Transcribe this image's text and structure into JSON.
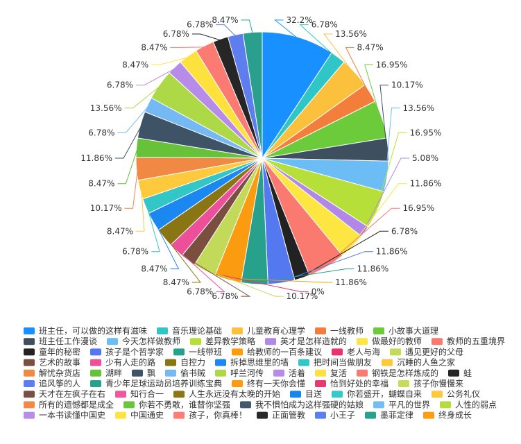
{
  "chart_data": {
    "type": "pie",
    "legend_position": "bottom",
    "slices": [
      {
        "name": "班主任，可以做的这样有滋味",
        "value": 32.2,
        "label": "32.2%",
        "color": "#1890ff"
      },
      {
        "name": "音乐理论基础",
        "value": 6.78,
        "label": "6.78%",
        "color": "#2fc6c8"
      },
      {
        "name": "儿童教育心理学",
        "value": 13.56,
        "label": "13.56%",
        "color": "#fcc13c"
      },
      {
        "name": "一线教师",
        "value": 8.47,
        "label": "8.47%",
        "color": "#f37d3b"
      },
      {
        "name": "小故事大道理",
        "value": 16.95,
        "label": "16.95%",
        "color": "#6bcb3a"
      },
      {
        "name": "班主任工作漫谈",
        "value": 10.17,
        "label": "10.17%",
        "color": "#3e5060"
      },
      {
        "name": "今天怎样做教师",
        "value": 13.56,
        "label": "13.56%",
        "color": "#6cbcf5"
      },
      {
        "name": "差异教学策略",
        "value": 16.95,
        "label": "16.95%",
        "color": "#b6e039"
      },
      {
        "name": "英才是怎样造就的",
        "value": 5.08,
        "label": "5.08%",
        "color": "#b188e7"
      },
      {
        "name": "做最好的教师",
        "value": 11.86,
        "label": "11.86%",
        "color": "#fde542"
      },
      {
        "name": "教师的五重境界",
        "value": 16.95,
        "label": "16.95%",
        "color": "#fa7a70"
      },
      {
        "name": "童年的秘密",
        "value": 6.78,
        "label": "6.78%",
        "color": "#222222"
      },
      {
        "name": "孩子是个哲学家",
        "value": 11.86,
        "label": "11.86%",
        "color": "#5478f0"
      },
      {
        "name": "一线带班",
        "value": 11.86,
        "label": "11.86%",
        "color": "#27a08c"
      },
      {
        "name": "给教师的一百条建议",
        "value": 11.86,
        "label": "11.86%",
        "color": "#fb9c10"
      },
      {
        "name": "老人与海",
        "value": 0,
        "label": "0%",
        "color": "#e8346a"
      },
      {
        "name": "遇见更好的父母",
        "value": 10.17,
        "label": "10.17%",
        "color": "#c3d95a"
      },
      {
        "name": "艺术的故事",
        "value": 6.78,
        "label": "6.78%",
        "color": "#7b4f3f"
      },
      {
        "name": "少有人走的路",
        "value": 6.78,
        "label": "6.78%",
        "color": "#ee4f9b"
      },
      {
        "name": "自控力",
        "value": 8.47,
        "label": "8.47%",
        "color": "#897514"
      },
      {
        "name": "拆掉思维里的墙",
        "value": 8.47,
        "label": "8.47%",
        "color": "#1a88f0"
      },
      {
        "name": "把时间当做朋友",
        "value": 6.78,
        "label": "6.78%",
        "color": "#33c6c7"
      },
      {
        "name": "沉睡的人鱼之家",
        "value": 8.47,
        "label": "8.47%",
        "color": "#ffc93d"
      },
      {
        "name": "解忧杂货店",
        "value": 10.17,
        "label": "10.17%",
        "color": "#f08944"
      },
      {
        "name": "湖畔",
        "value": 8.47,
        "label": "8.47%",
        "color": "#67c23a"
      },
      {
        "name": "飘",
        "value": 11.86,
        "label": "11.86%",
        "color": "#3e5366"
      },
      {
        "name": "偷书贼",
        "value": 6.78,
        "label": "6.78%",
        "color": "#74b9f3"
      },
      {
        "name": "呼兰河传",
        "value": 13.56,
        "label": "13.56%",
        "color": "#aed946"
      },
      {
        "name": "活着",
        "value": 6.78,
        "label": "6.78%",
        "color": "#b78be8"
      },
      {
        "name": "复活",
        "value": 8.47,
        "label": "8.47%",
        "color": "#fde23e"
      },
      {
        "name": "钢铁是怎样炼成的",
        "value": 8.47,
        "label": "8.47%",
        "color": "#fb7b72"
      },
      {
        "name": "蛙",
        "value": 6.78,
        "label": "6.78%",
        "color": "#262626"
      },
      {
        "name": "追风筝的人",
        "value": 6.78,
        "label": "6.78%",
        "color": "#5e7ef0"
      },
      {
        "name": "青少年足球运动员培养训练宝典",
        "value": 8.47,
        "label": "8.47%",
        "color": "#2a9f8d"
      },
      {
        "name": "终有一天你会懂",
        "value": 0,
        "label": "",
        "color": "#fb9b14"
      },
      {
        "name": "恰到好处的幸福",
        "value": 0,
        "label": "",
        "color": "#e73a6d"
      },
      {
        "name": "孩子你慢慢来",
        "value": 0,
        "label": "",
        "color": "#c6dc5c"
      },
      {
        "name": "天才在左疯子在右",
        "value": 0,
        "label": "",
        "color": "#7a5043"
      },
      {
        "name": "知行合一",
        "value": 0,
        "label": "",
        "color": "#ef579e"
      },
      {
        "name": "人生永远没有太晚的开始",
        "value": 0,
        "label": "",
        "color": "#8c7716"
      },
      {
        "name": "目送",
        "value": 0,
        "label": "",
        "color": "#1687ed"
      },
      {
        "name": "你若盛开，蝴蝶自来",
        "value": 0,
        "label": "",
        "color": "#36c9c9"
      },
      {
        "name": "公务礼仪",
        "value": 0,
        "label": "",
        "color": "#fdc73e"
      },
      {
        "name": "所有的遗憾都是成全",
        "value": 0,
        "label": "",
        "color": "#f28a46"
      },
      {
        "name": "你若不勇敢，谁替你坚强",
        "value": 0,
        "label": "",
        "color": "#6cc63c"
      },
      {
        "name": "我不惧怕成为这样强硬的姑娘",
        "value": 0,
        "label": "",
        "color": "#42586c"
      },
      {
        "name": "平凡的世界",
        "value": 0,
        "label": "",
        "color": "#73bcf4"
      },
      {
        "name": "人性的弱点",
        "value": 0,
        "label": "",
        "color": "#b4dc3e"
      },
      {
        "name": "一本书读懂中国史",
        "value": 0,
        "label": "",
        "color": "#b88de6"
      },
      {
        "name": "中国通史",
        "value": 0,
        "label": "",
        "color": "#fde441"
      },
      {
        "name": "孩子，你真棒！",
        "value": 0,
        "label": "",
        "color": "#fb7f74"
      },
      {
        "name": "正面管教",
        "value": 0,
        "label": "",
        "color": "#2a2a2a"
      },
      {
        "name": "小王子",
        "value": 0,
        "label": "",
        "color": "#5b7ff1"
      },
      {
        "name": "墨菲定律",
        "value": 0,
        "label": "",
        "color": "#29a18f"
      },
      {
        "name": "终身成长",
        "value": 0,
        "label": "",
        "color": "#fc9d12"
      }
    ]
  }
}
